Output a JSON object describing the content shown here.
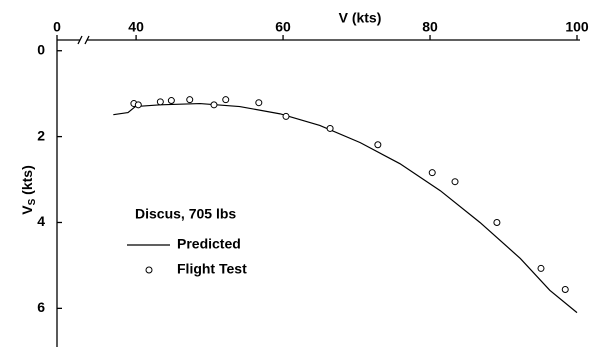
{
  "chart_data": {
    "type": "line",
    "xlabel": "V (kts)",
    "ylabel": {
      "main": "V",
      "sub": "S",
      "unit": " (kts)"
    },
    "annotation": "Discus, 705 lbs",
    "xlim": [
      0,
      100
    ],
    "xticks": [
      0,
      40,
      60,
      80,
      100
    ],
    "x_break": 34,
    "ylim": [
      -0.25,
      6.9
    ],
    "yticks": [
      0,
      2,
      4,
      6
    ],
    "y_inverted": true,
    "series": [
      {
        "name": "Predicted",
        "style": "line",
        "color": "#000000",
        "x": [
          36.9,
          38.9,
          39.9,
          43.3,
          48.7,
          54.1,
          59.6,
          65.0,
          70.5,
          75.9,
          81.4,
          86.8,
          92.3,
          96.3,
          100
        ],
        "values": [
          1.49,
          1.44,
          1.3,
          1.26,
          1.23,
          1.3,
          1.47,
          1.74,
          2.14,
          2.63,
          3.26,
          4.0,
          4.84,
          5.58,
          6.1
        ]
      },
      {
        "name": "Flight Test",
        "style": "marker",
        "color": "#000000",
        "x": [
          39.7,
          40.3,
          43.3,
          44.8,
          47.3,
          50.6,
          52.2,
          56.7,
          60.4,
          66.4,
          72.9,
          80.3,
          83.4,
          89.1,
          95.1,
          98.4
        ],
        "values": [
          1.23,
          1.26,
          1.19,
          1.16,
          1.14,
          1.26,
          1.14,
          1.21,
          1.53,
          1.81,
          2.19,
          2.84,
          3.05,
          4.0,
          5.07,
          5.56
        ]
      }
    ]
  }
}
